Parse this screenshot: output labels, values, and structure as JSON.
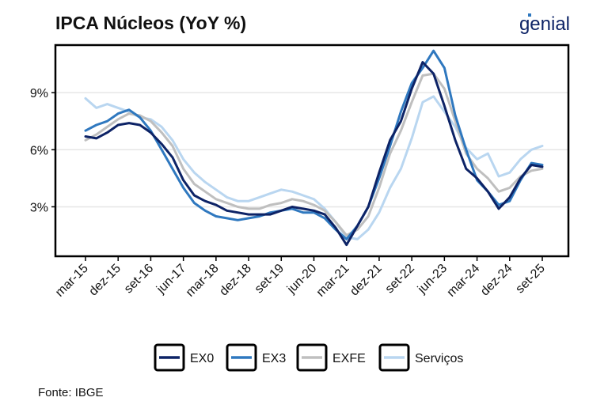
{
  "title": "IPCA Núcleos (YoY %)",
  "logo_text": "genial",
  "source": "Fonte: IBGE",
  "colors": {
    "EX0": "#0d2366",
    "EX3": "#2f78bf",
    "EXFE": "#bfbfbf",
    "Servicos": "#b9d6f0",
    "logo": "#0d2366",
    "logo_accent": "#2f78bf"
  },
  "chart_data": {
    "type": "line",
    "title": "IPCA Núcleos (YoY %)",
    "xlabel": "",
    "ylabel": "",
    "ylim": [
      0.4,
      11.5
    ],
    "y_ticks": [
      3,
      6,
      9
    ],
    "y_tick_labels": [
      "3%",
      "6%",
      "9%"
    ],
    "x_ticks": [
      "mar-15",
      "dez-15",
      "set-16",
      "jun-17",
      "mar-18",
      "dez-18",
      "set-19",
      "jun-20",
      "mar-21",
      "dez-21",
      "set-22",
      "jun-23",
      "mar-24",
      "dez-24",
      "set-25"
    ],
    "grid": "horizontal",
    "legend_position": "bottom",
    "note": "Monthly values, keypoints at Mar 2015 then every 3 months to Sep 2025 (43 points). Values estimated from chart.",
    "series": [
      {
        "name": "EX0",
        "values": [
          6.7,
          6.6,
          6.9,
          7.3,
          7.4,
          7.3,
          6.9,
          6.3,
          5.6,
          4.4,
          3.6,
          3.3,
          3.1,
          2.8,
          2.7,
          2.6,
          2.6,
          2.6,
          2.8,
          3.0,
          2.9,
          2.8,
          2.6,
          1.9,
          1.0,
          2.0,
          3.0,
          4.8,
          6.5,
          7.5,
          9.2,
          10.6,
          10.0,
          8.3,
          6.5,
          5.0,
          4.5,
          3.8,
          2.9,
          3.5,
          4.5,
          5.2,
          5.1
        ]
      },
      {
        "name": "EX3",
        "values": [
          7.0,
          7.3,
          7.5,
          7.9,
          8.1,
          7.7,
          7.0,
          6.0,
          5.0,
          4.0,
          3.2,
          2.8,
          2.5,
          2.4,
          2.3,
          2.4,
          2.5,
          2.7,
          2.8,
          2.9,
          2.7,
          2.7,
          2.4,
          1.8,
          1.3,
          2.0,
          3.0,
          4.5,
          6.2,
          8.0,
          9.5,
          10.3,
          11.2,
          10.3,
          7.8,
          6.0,
          4.4,
          3.8,
          3.1,
          3.3,
          4.4,
          5.3,
          5.2
        ]
      },
      {
        "name": "EXFE",
        "values": [
          6.5,
          6.8,
          7.2,
          7.6,
          7.9,
          7.8,
          7.5,
          6.9,
          6.2,
          5.0,
          4.2,
          3.8,
          3.4,
          3.2,
          3.0,
          2.9,
          2.9,
          3.1,
          3.2,
          3.4,
          3.3,
          3.1,
          2.8,
          2.2,
          1.5,
          1.8,
          2.5,
          4.0,
          5.8,
          7.0,
          8.5,
          9.9,
          10.0,
          9.2,
          7.5,
          5.8,
          5.0,
          4.5,
          3.8,
          4.0,
          4.6,
          4.9,
          5.0
        ]
      },
      {
        "name": "Serviços",
        "values": [
          8.7,
          8.2,
          8.4,
          8.2,
          8.0,
          7.7,
          7.6,
          7.2,
          6.5,
          5.5,
          4.8,
          4.3,
          3.9,
          3.5,
          3.3,
          3.3,
          3.5,
          3.7,
          3.9,
          3.8,
          3.6,
          3.4,
          2.9,
          2.2,
          1.4,
          1.3,
          1.8,
          2.7,
          4.0,
          5.0,
          6.6,
          8.5,
          8.8,
          8.0,
          7.2,
          6.1,
          5.5,
          5.8,
          4.6,
          4.8,
          5.5,
          6.0,
          6.2
        ]
      }
    ]
  }
}
